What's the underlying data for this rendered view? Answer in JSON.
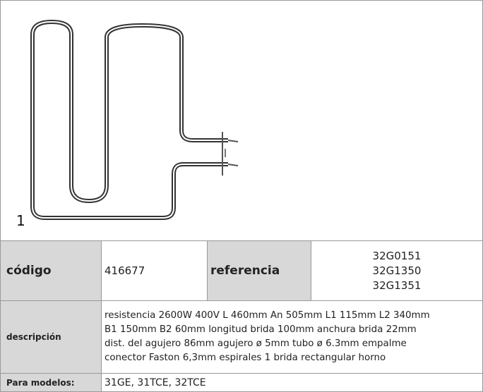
{
  "image": {
    "label": "1"
  },
  "table": {
    "code_label": "código",
    "code": "416677",
    "reference_label": "referencia",
    "references": [
      "32G0151",
      "32G1350",
      "32G1351"
    ],
    "description_label": "descripción",
    "description": [
      "resistencia  2600W 400V L 460mm An 505mm L1 115mm L2 340mm",
      "B1 150mm B2 60mm longitud brida 100mm anchura brida 22mm",
      "dist. del agujero 86mm agujero ø 5mm tubo ø 6.3mm empalme",
      "conector Faston 6,3mm espirales 1 brida rectangular  horno"
    ],
    "models_label": "Para modelos:",
    "models": "31GE, 31TCE, 32TCE"
  }
}
